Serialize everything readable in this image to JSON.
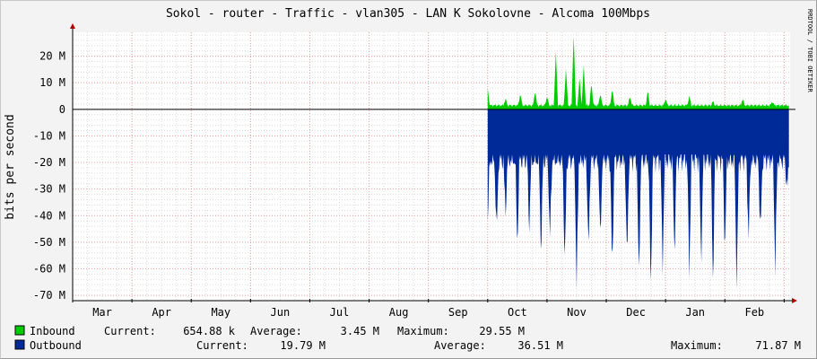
{
  "chart_data": {
    "type": "area",
    "title": "Sokol - router - Traffic - vlan305 - LAN K Sokolovne - Alcoma 100Mbps",
    "ylabel": "bits per second",
    "watermark": "RRDTOOL / TOBI OETIKER",
    "ylim": [
      -72,
      29
    ],
    "y_ticks": [
      {
        "label": "20 M",
        "value": 20
      },
      {
        "label": "10 M",
        "value": 10
      },
      {
        "label": "0",
        "value": 0
      },
      {
        "label": "-10 M",
        "value": -10
      },
      {
        "label": "-20 M",
        "value": -20
      },
      {
        "label": "-30 M",
        "value": -30
      },
      {
        "label": "-40 M",
        "value": -40
      },
      {
        "label": "-50 M",
        "value": -50
      },
      {
        "label": "-60 M",
        "value": -60
      },
      {
        "label": "-70 M",
        "value": -70
      }
    ],
    "categories": [
      "Mar",
      "Apr",
      "May",
      "Jun",
      "Jul",
      "Aug",
      "Sep",
      "Oct",
      "Nov",
      "Dec",
      "Jan",
      "Feb",
      "Mar"
    ],
    "x_start_month_index": 0,
    "x_end_month_index": 12.1,
    "data_start_month_index": 7.0,
    "series": [
      {
        "name": "Inbound",
        "color": "#00cc00",
        "baseline_y": 1.5,
        "spikes": [
          {
            "x": 7.0,
            "y": 8
          },
          {
            "x": 7.3,
            "y": 4
          },
          {
            "x": 7.55,
            "y": 6
          },
          {
            "x": 7.8,
            "y": 7
          },
          {
            "x": 8.0,
            "y": 5
          },
          {
            "x": 8.15,
            "y": 22
          },
          {
            "x": 8.32,
            "y": 16
          },
          {
            "x": 8.45,
            "y": 29
          },
          {
            "x": 8.55,
            "y": 12
          },
          {
            "x": 8.62,
            "y": 17
          },
          {
            "x": 8.75,
            "y": 10
          },
          {
            "x": 8.9,
            "y": 6
          },
          {
            "x": 9.1,
            "y": 8
          },
          {
            "x": 9.4,
            "y": 5
          },
          {
            "x": 9.7,
            "y": 7
          },
          {
            "x": 10.0,
            "y": 4
          },
          {
            "x": 10.4,
            "y": 5
          },
          {
            "x": 10.8,
            "y": 3
          },
          {
            "x": 11.3,
            "y": 4
          },
          {
            "x": 11.8,
            "y": 3
          }
        ],
        "legend": {
          "current_label": "Current:",
          "current": "654.88 k",
          "average_label": "Average:",
          "average": "3.45 M",
          "maximum_label": "Maximum:",
          "maximum": "29.55 M"
        }
      },
      {
        "name": "Outbound",
        "color": "#002a97",
        "baseline_y": -19,
        "spikes": [
          {
            "x": 7.0,
            "y": -43
          },
          {
            "x": 7.15,
            "y": -48
          },
          {
            "x": 7.3,
            "y": -40
          },
          {
            "x": 7.5,
            "y": -52
          },
          {
            "x": 7.7,
            "y": -45
          },
          {
            "x": 7.9,
            "y": -55
          },
          {
            "x": 8.05,
            "y": -50
          },
          {
            "x": 8.3,
            "y": -60
          },
          {
            "x": 8.5,
            "y": -68
          },
          {
            "x": 8.7,
            "y": -55
          },
          {
            "x": 8.9,
            "y": -50
          },
          {
            "x": 9.1,
            "y": -62
          },
          {
            "x": 9.35,
            "y": -58
          },
          {
            "x": 9.55,
            "y": -65
          },
          {
            "x": 9.75,
            "y": -70
          },
          {
            "x": 9.95,
            "y": -60
          },
          {
            "x": 10.15,
            "y": -55
          },
          {
            "x": 10.4,
            "y": -63
          },
          {
            "x": 10.6,
            "y": -58
          },
          {
            "x": 10.8,
            "y": -66
          },
          {
            "x": 11.0,
            "y": -53
          },
          {
            "x": 11.2,
            "y": -68
          },
          {
            "x": 11.4,
            "y": -50
          },
          {
            "x": 11.6,
            "y": -48
          },
          {
            "x": 11.85,
            "y": -61
          },
          {
            "x": 12.05,
            "y": -31
          }
        ],
        "legend": {
          "current_label": "Current:",
          "current": "19.79 M",
          "average_label": "Average:",
          "average": "36.51 M",
          "maximum_label": "Maximum:",
          "maximum": "71.87 M"
        }
      }
    ],
    "colors": {
      "background": "#f3f3f3",
      "plot": "#ffffff",
      "grid_minor": "#dcdcdc",
      "grid_major": "#e8a0a0",
      "axis": "#000000",
      "arrow": "#b00000",
      "text": "#000000",
      "watermark": "#999999"
    }
  }
}
